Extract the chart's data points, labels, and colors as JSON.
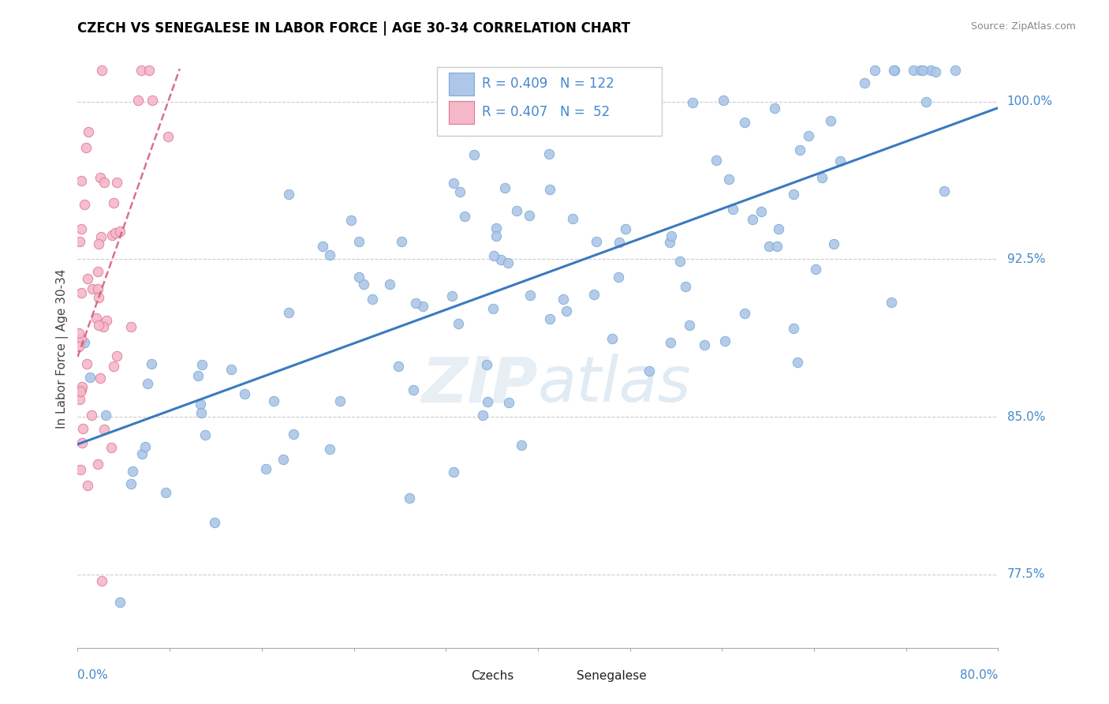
{
  "title": "CZECH VS SENEGALESE IN LABOR FORCE | AGE 30-34 CORRELATION CHART",
  "source": "Source: ZipAtlas.com",
  "xmin": 0.0,
  "xmax": 80.0,
  "ymin": 74.0,
  "ymax": 102.5,
  "czech_R": 0.409,
  "czech_N": 122,
  "senegal_R": 0.407,
  "senegal_N": 52,
  "czech_color": "#aec6e8",
  "czech_edge_color": "#7aadd4",
  "senegal_color": "#f4b8c8",
  "senegal_edge_color": "#e07898",
  "czech_line_color": "#3a7abf",
  "senegal_line_color": "#d45878",
  "ylabel_ticks": [
    77.5,
    85.0,
    92.5,
    100.0
  ],
  "ylabel_tick_labels": [
    "77.5%",
    "85.0%",
    "92.5%",
    "100.0%"
  ],
  "legend_label_czech": "Czechs",
  "legend_label_senegal": "Senegalese",
  "watermark_zip": "ZIP",
  "watermark_atlas": "atlas"
}
